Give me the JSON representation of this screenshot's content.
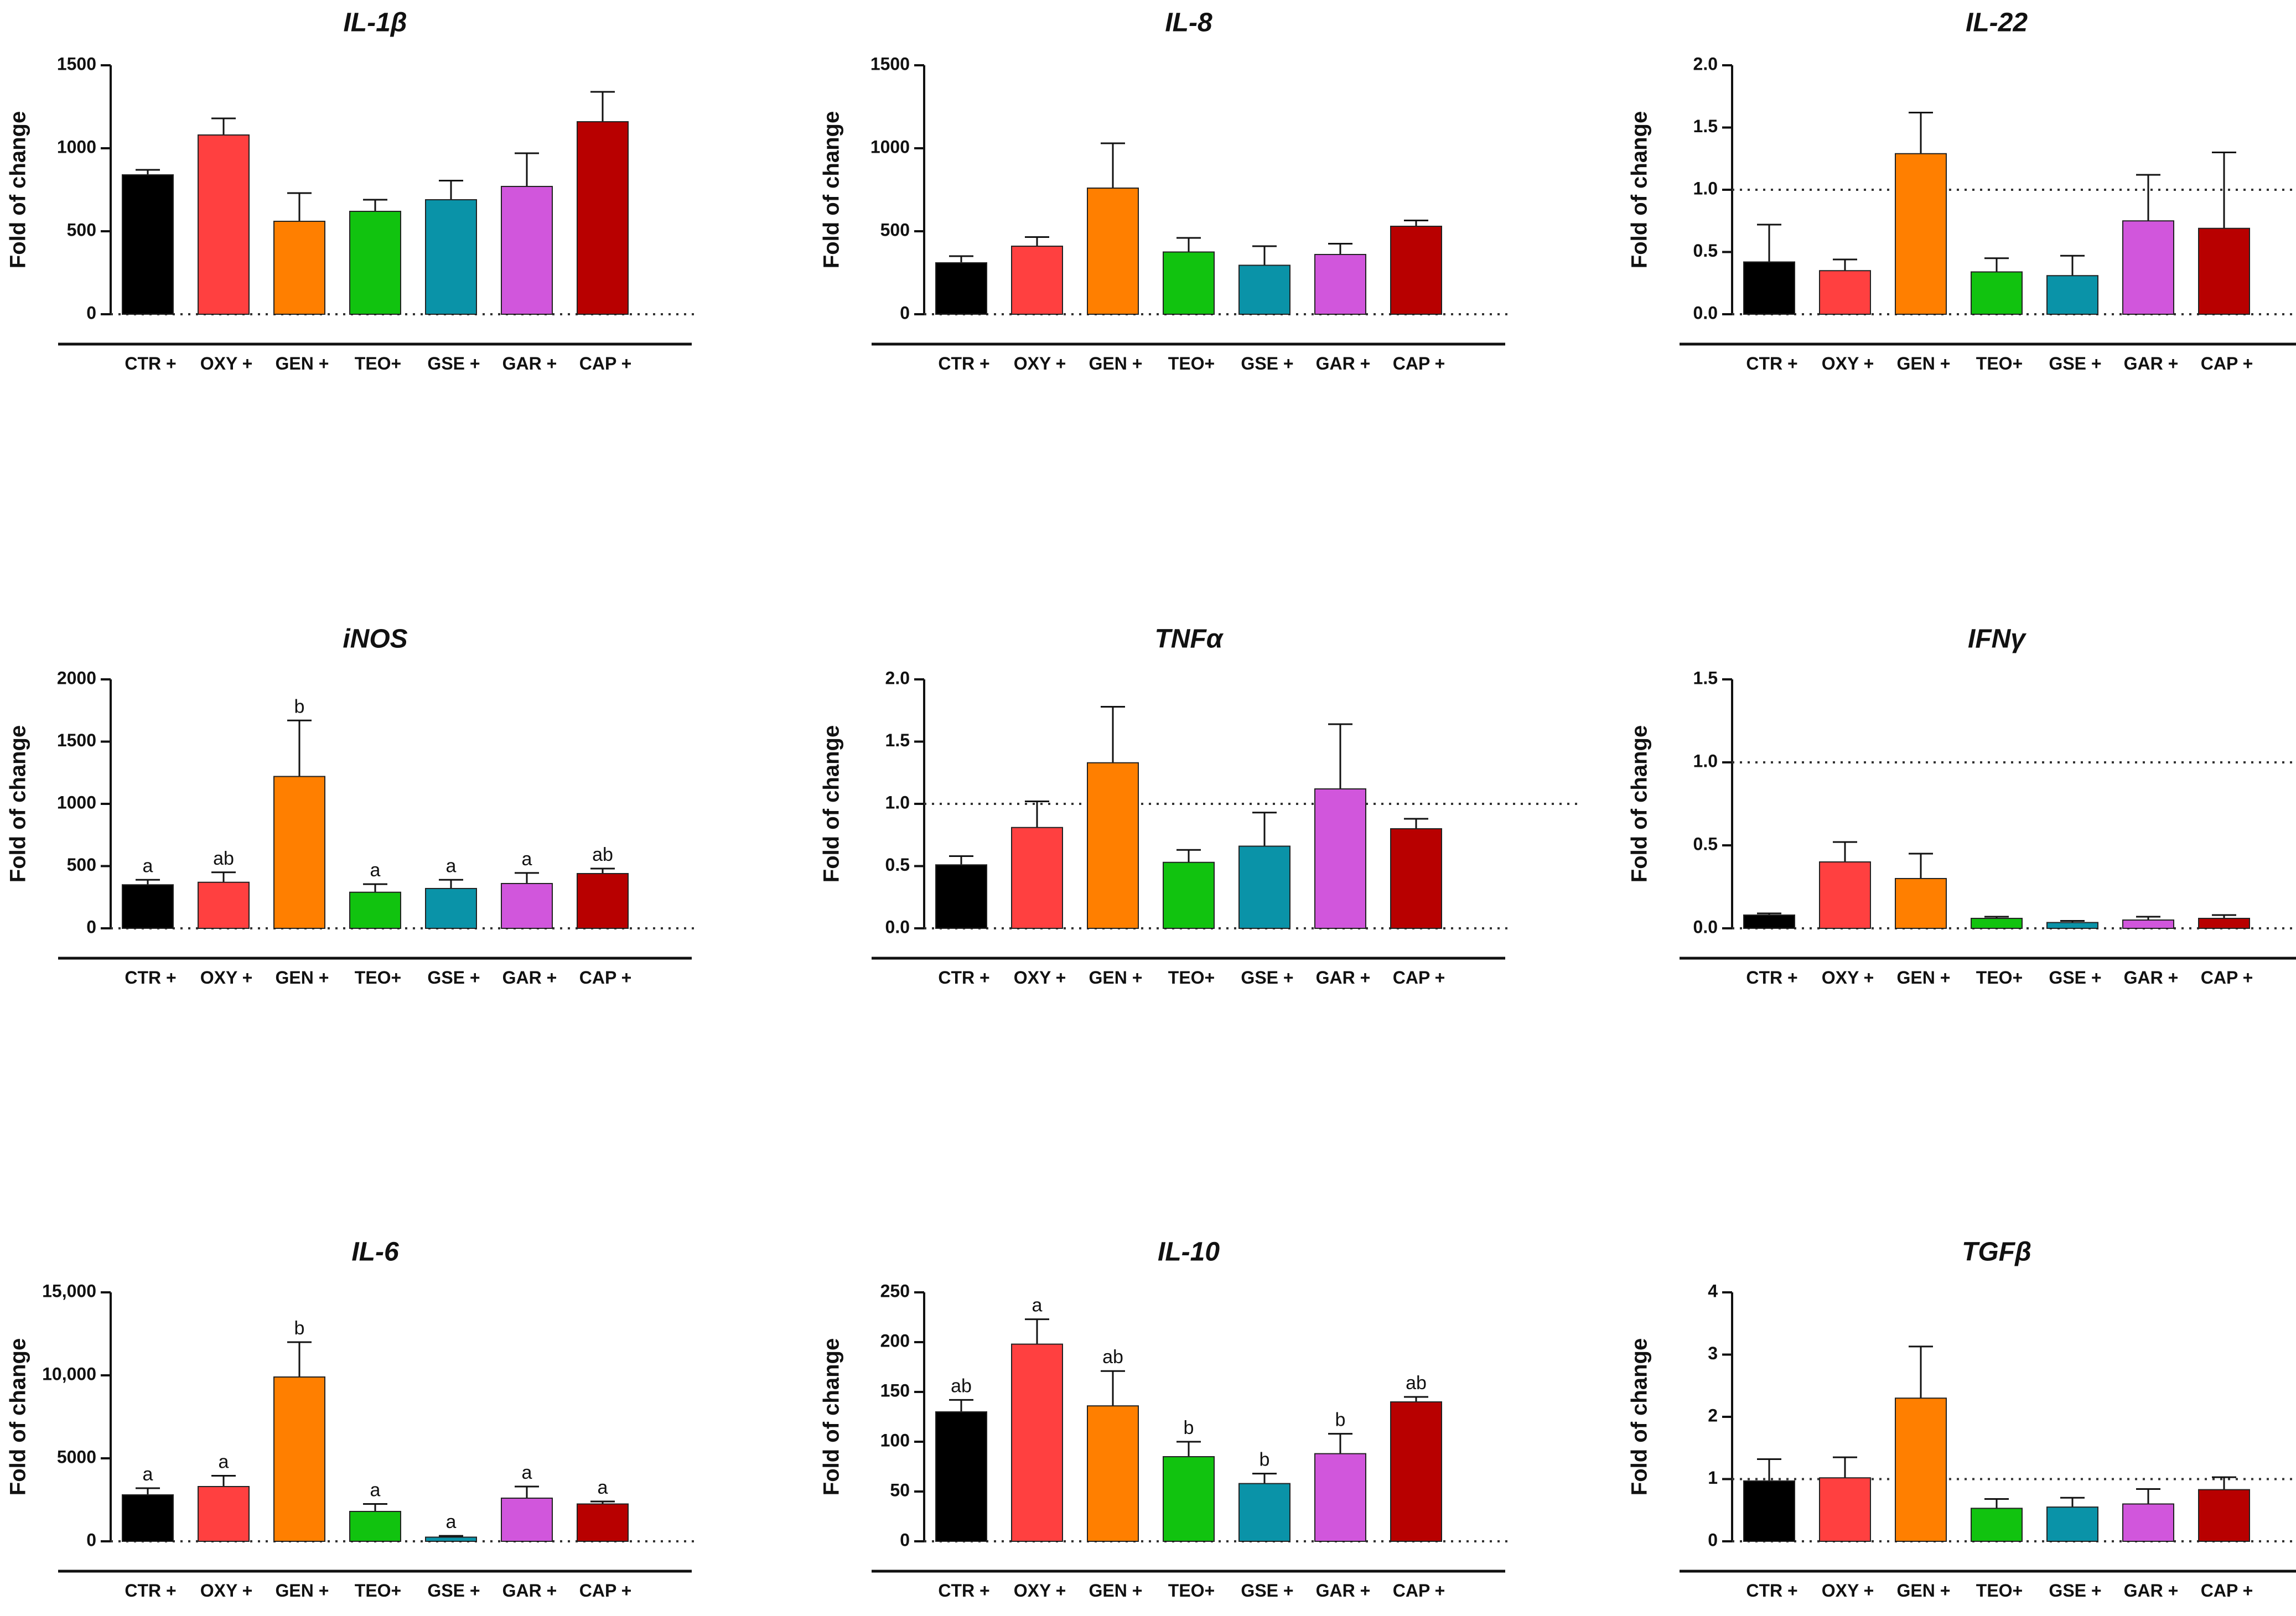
{
  "chart_data": [
    {
      "type": "bar",
      "title": "IL-1β",
      "xlabel": "",
      "ylabel": "Fold of change",
      "categories": [
        "CTR +",
        "OXY +",
        "GEN +",
        "TEO+",
        "GSE +",
        "GAR +",
        "CAP +"
      ],
      "values": [
        840,
        1080,
        560,
        620,
        690,
        770,
        1160
      ],
      "errors": [
        30,
        100,
        170,
        70,
        115,
        200,
        180
      ],
      "significance": [],
      "yticks": [
        0,
        500,
        1000,
        1500
      ],
      "ytick_labels": [
        "0",
        "500",
        "1000",
        "1500"
      ],
      "ylim": [
        0,
        1500
      ],
      "reference_line": null
    },
    {
      "type": "bar",
      "title": "IL-8",
      "xlabel": "",
      "ylabel": "Fold of change",
      "categories": [
        "CTR +",
        "OXY +",
        "GEN +",
        "TEO+",
        "GSE +",
        "GAR +",
        "CAP +"
      ],
      "values": [
        310,
        410,
        760,
        375,
        295,
        360,
        530
      ],
      "errors": [
        40,
        55,
        270,
        85,
        115,
        65,
        35
      ],
      "significance": [],
      "yticks": [
        0,
        500,
        1000,
        1500
      ],
      "ytick_labels": [
        "0",
        "500",
        "1000",
        "1500"
      ],
      "ylim": [
        0,
        1500
      ],
      "reference_line": null
    },
    {
      "type": "bar",
      "title": "IL-22",
      "xlabel": "",
      "ylabel": "Fold of change",
      "categories": [
        "CTR +",
        "OXY +",
        "GEN +",
        "TEO+",
        "GSE +",
        "GAR +",
        "CAP +"
      ],
      "values": [
        0.42,
        0.35,
        1.29,
        0.34,
        0.31,
        0.75,
        0.69
      ],
      "errors": [
        0.3,
        0.09,
        0.33,
        0.11,
        0.16,
        0.37,
        0.61
      ],
      "significance": [],
      "yticks": [
        0,
        0.5,
        1,
        1.5,
        2
      ],
      "ytick_labels": [
        "0.0",
        "0.5",
        "1.0",
        "1.5",
        "2.0"
      ],
      "ylim": [
        0,
        2
      ],
      "reference_line": 1
    },
    {
      "type": "bar",
      "title": "iNOS",
      "xlabel": "",
      "ylabel": "Fold of change",
      "categories": [
        "CTR +",
        "OXY +",
        "GEN +",
        "TEO+",
        "GSE +",
        "GAR +",
        "CAP +"
      ],
      "values": [
        350,
        370,
        1220,
        290,
        320,
        360,
        440
      ],
      "errors": [
        40,
        80,
        450,
        65,
        70,
        85,
        40
      ],
      "significance": [
        "a",
        "ab",
        "b",
        "a",
        "a",
        "a",
        "ab"
      ],
      "yticks": [
        0,
        500,
        1000,
        1500,
        2000
      ],
      "ytick_labels": [
        "0",
        "500",
        "1000",
        "1500",
        "2000"
      ],
      "ylim": [
        0,
        2000
      ],
      "reference_line": null
    },
    {
      "type": "bar",
      "title": "TNFα",
      "xlabel": "",
      "ylabel": "Fold of change",
      "categories": [
        "CTR +",
        "OXY +",
        "GEN +",
        "TEO+",
        "GSE +",
        "GAR +",
        "CAP +"
      ],
      "values": [
        0.51,
        0.81,
        1.33,
        0.53,
        0.66,
        1.12,
        0.8
      ],
      "errors": [
        0.07,
        0.21,
        0.45,
        0.1,
        0.27,
        0.52,
        0.08
      ],
      "significance": [],
      "yticks": [
        0,
        0.5,
        1,
        1.5,
        2
      ],
      "ytick_labels": [
        "0.0",
        "0.5",
        "1.0",
        "1.5",
        "2.0"
      ],
      "ylim": [
        0,
        2
      ],
      "reference_line": 1
    },
    {
      "type": "bar",
      "title": "IFNγ",
      "xlabel": "",
      "ylabel": "Fold of change",
      "categories": [
        "CTR +",
        "OXY +",
        "GEN +",
        "TEO+",
        "GSE +",
        "GAR +",
        "CAP +"
      ],
      "values": [
        0.08,
        0.4,
        0.3,
        0.06,
        0.035,
        0.05,
        0.06
      ],
      "errors": [
        0.01,
        0.12,
        0.15,
        0.01,
        0.01,
        0.02,
        0.02
      ],
      "significance": [],
      "yticks": [
        0,
        0.5,
        1,
        1.5
      ],
      "ytick_labels": [
        "0.0",
        "0.5",
        "1.0",
        "1.5"
      ],
      "ylim": [
        0,
        1.5
      ],
      "reference_line": 1
    },
    {
      "type": "bar",
      "title": "IL-6",
      "xlabel": "",
      "ylabel": "Fold of change",
      "categories": [
        "CTR +",
        "OXY +",
        "GEN +",
        "TEO+",
        "GSE +",
        "GAR +",
        "CAP +"
      ],
      "values": [
        2800,
        3300,
        9900,
        1800,
        250,
        2600,
        2250
      ],
      "errors": [
        400,
        650,
        2100,
        450,
        80,
        700,
        150
      ],
      "significance": [
        "a",
        "a",
        "b",
        "a",
        "a",
        "a",
        "a"
      ],
      "yticks": [
        0,
        5000,
        10000,
        15000
      ],
      "ytick_labels": [
        "0",
        "5000",
        "10,000",
        "15,000"
      ],
      "ylim": [
        0,
        15000
      ],
      "reference_line": null
    },
    {
      "type": "bar",
      "title": "IL-10",
      "xlabel": "",
      "ylabel": "Fold of change",
      "categories": [
        "CTR +",
        "OXY +",
        "GEN +",
        "TEO+",
        "GSE +",
        "GAR +",
        "CAP +"
      ],
      "values": [
        130,
        198,
        136,
        85,
        58,
        88,
        140
      ],
      "errors": [
        12,
        25,
        35,
        15,
        10,
        20,
        5
      ],
      "significance": [
        "ab",
        "a",
        "ab",
        "b",
        "b",
        "b",
        "ab"
      ],
      "yticks": [
        0,
        50,
        100,
        150,
        200,
        250
      ],
      "ytick_labels": [
        "0",
        "50",
        "100",
        "150",
        "200",
        "250"
      ],
      "ylim": [
        0,
        250
      ],
      "reference_line": null
    },
    {
      "type": "bar",
      "title": "TGFβ",
      "xlabel": "",
      "ylabel": "Fold of change",
      "categories": [
        "CTR +",
        "OXY +",
        "GEN +",
        "TEO+",
        "GSE +",
        "GAR +",
        "CAP +"
      ],
      "values": [
        0.97,
        1.02,
        2.3,
        0.53,
        0.55,
        0.6,
        0.83
      ],
      "errors": [
        0.35,
        0.33,
        0.83,
        0.15,
        0.15,
        0.24,
        0.2
      ],
      "significance": [],
      "yticks": [
        0,
        1,
        2,
        3,
        4
      ],
      "ytick_labels": [
        "0",
        "1",
        "2",
        "3",
        "4"
      ],
      "ylim": [
        0,
        4
      ],
      "reference_line": 1
    }
  ],
  "colors": {
    "series": [
      "#000000",
      "#ff4040",
      "#ff7f00",
      "#11c30f",
      "#0a93a8",
      "#d156dc",
      "#b80000"
    ],
    "axis": "#111111",
    "reference_line": "#333333"
  }
}
